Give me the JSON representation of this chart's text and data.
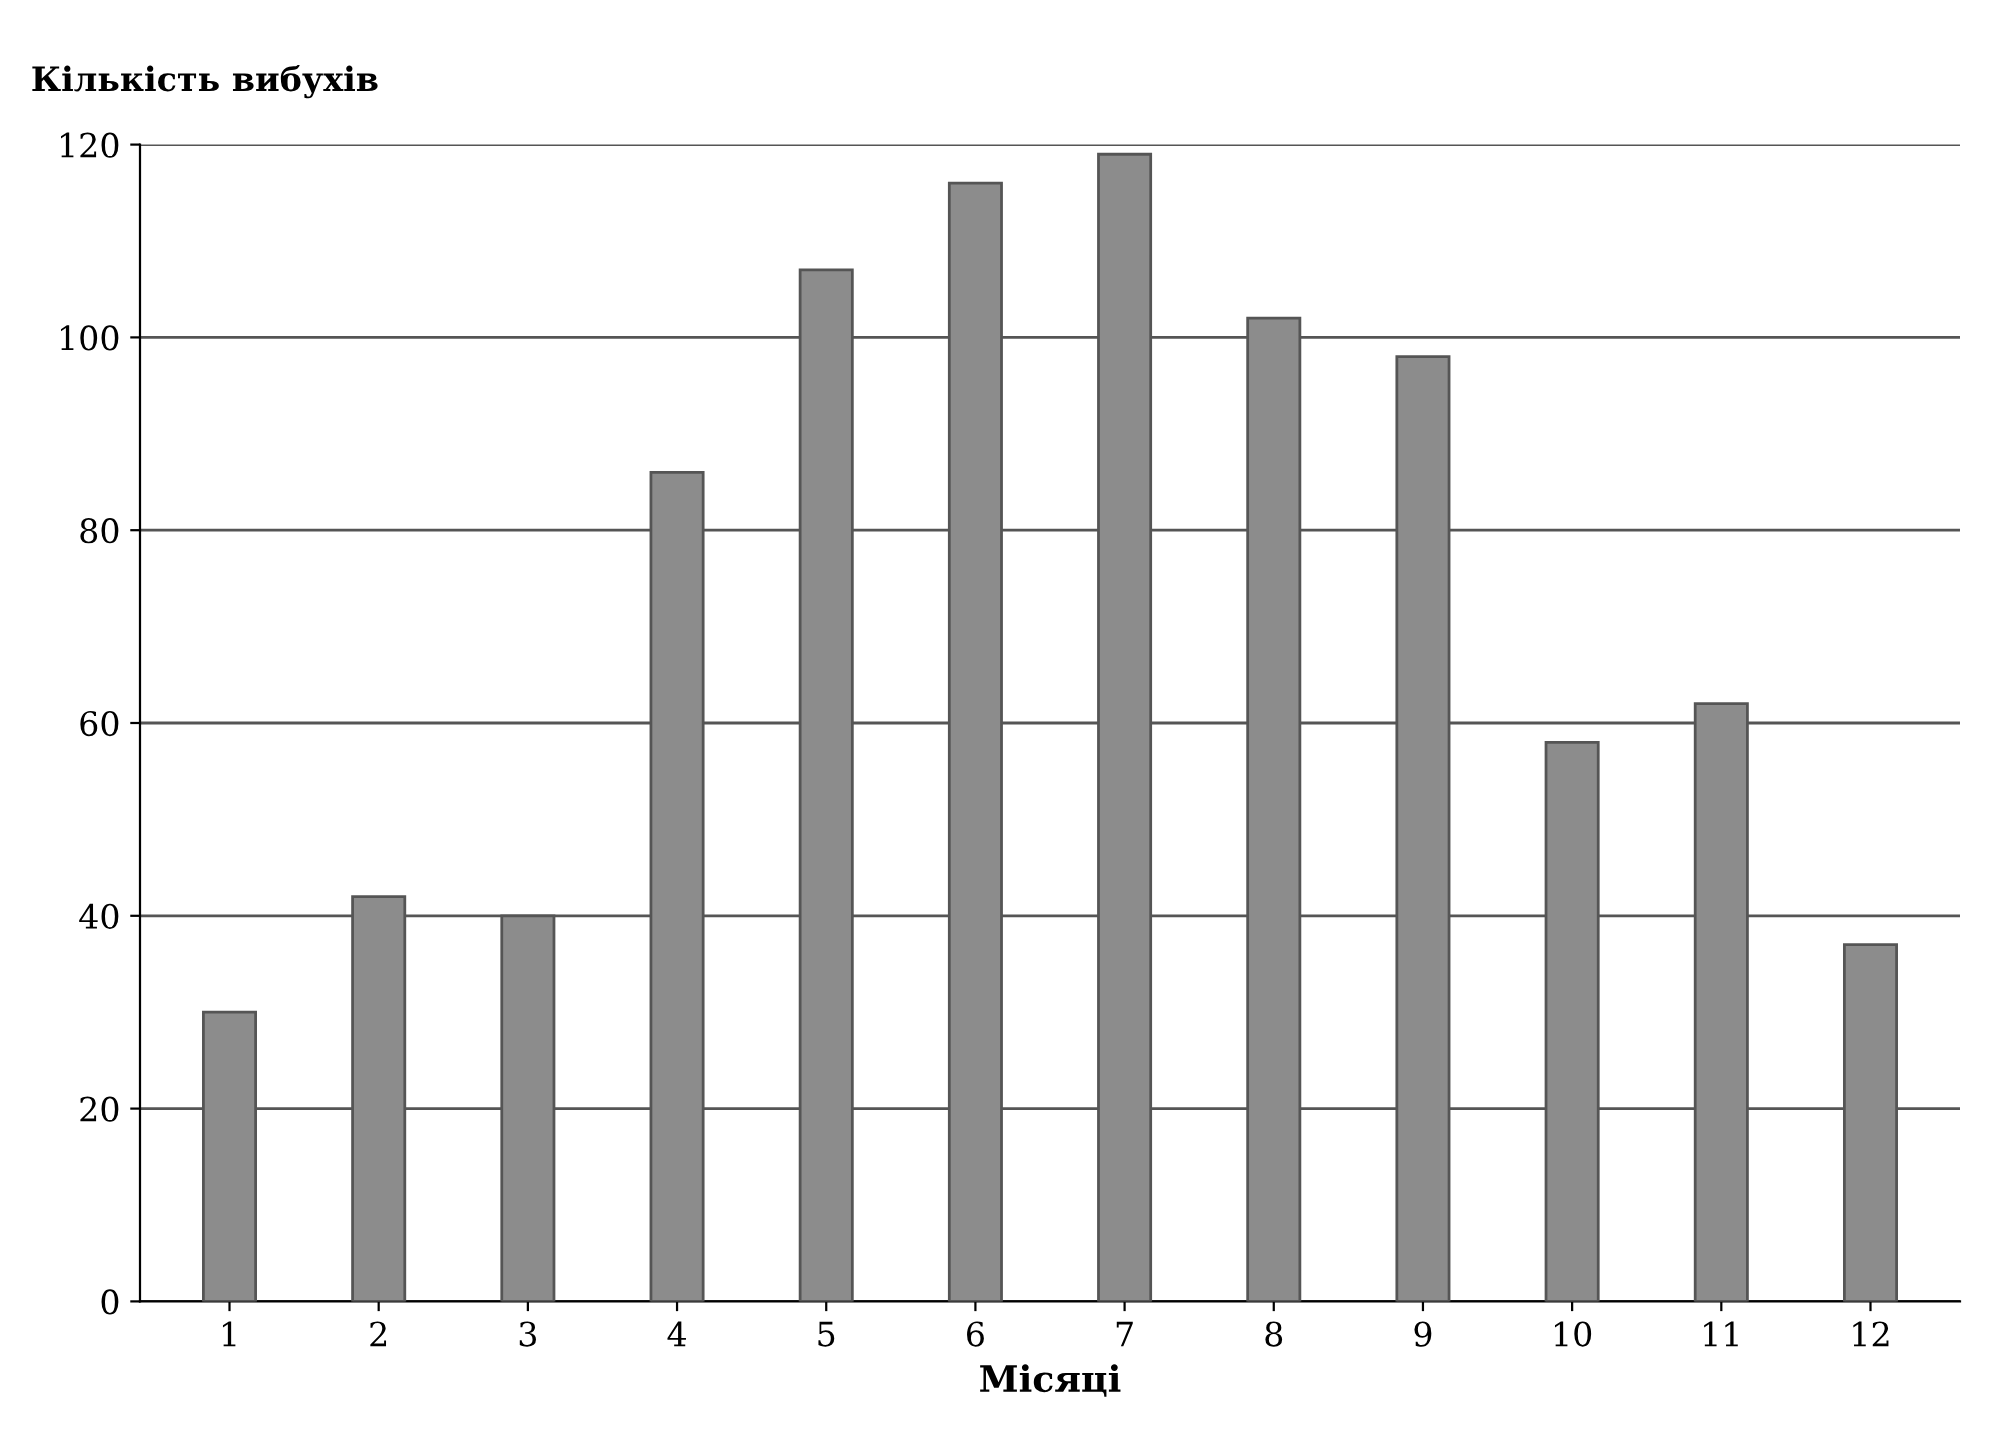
{
  "chart_data": {
    "type": "bar",
    "ylabel": "Кількість вибухів",
    "xlabel": "Місяці",
    "categories": [
      "1",
      "2",
      "3",
      "4",
      "5",
      "6",
      "7",
      "8",
      "9",
      "10",
      "11",
      "12"
    ],
    "values": [
      30,
      42,
      40,
      86,
      107,
      116,
      119,
      102,
      98,
      58,
      62,
      37
    ],
    "color": "#8c8c8c",
    "ylim": [
      0,
      120
    ],
    "yticks": [
      0,
      20,
      40,
      60,
      80,
      100,
      120
    ],
    "grid": "y"
  }
}
